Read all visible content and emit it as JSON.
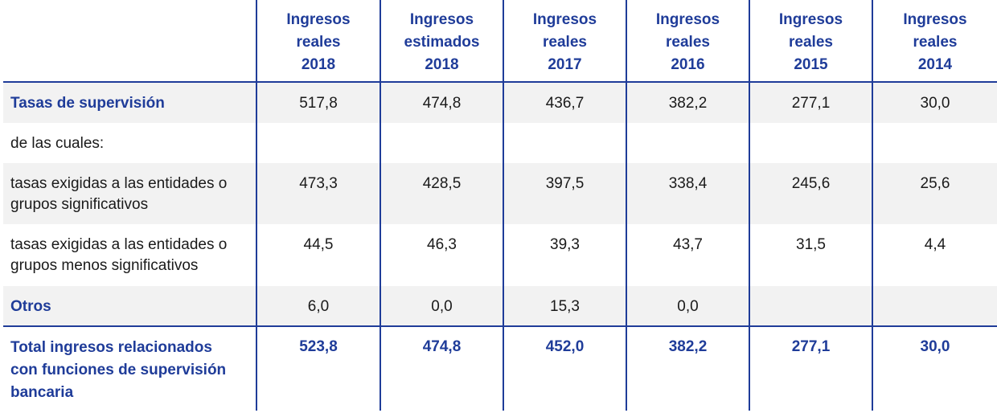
{
  "headers": [
    [
      "Ingresos",
      "reales",
      "2018"
    ],
    [
      "Ingresos",
      "estimados",
      "2018"
    ],
    [
      "Ingresos",
      "reales",
      "2017"
    ],
    [
      "Ingresos",
      "reales",
      "2016"
    ],
    [
      "Ingresos",
      "reales",
      "2015"
    ],
    [
      "Ingresos",
      "reales",
      "2014"
    ]
  ],
  "rows": {
    "tasas": {
      "label": "Tasas de supervisión",
      "values": [
        "517,8",
        "474,8",
        "436,7",
        "382,2",
        "277,1",
        "30,0"
      ]
    },
    "de_las_cuales": {
      "label": "de las cuales:"
    },
    "significativos": {
      "label_line1": "tasas exigidas a las entidades o",
      "label_line2": "grupos significativos",
      "values": [
        "473,3",
        "428,5",
        "397,5",
        "338,4",
        "245,6",
        "25,6"
      ]
    },
    "menos_significativos": {
      "label_line1": "tasas exigidas a las entidades o",
      "label_line2": "grupos menos significativos",
      "values": [
        "44,5",
        "46,3",
        "39,3",
        "43,7",
        "31,5",
        "4,4"
      ]
    },
    "otros": {
      "label": "Otros",
      "values": [
        "6,0",
        "0,0",
        "15,3",
        "0,0",
        "",
        ""
      ]
    },
    "total": {
      "label_line1": "Total ingresos relacionados",
      "label_line2": "con funciones de supervisión",
      "label_line3": "bancaria",
      "values": [
        "523,8",
        "474,8",
        "452,0",
        "382,2",
        "277,1",
        "30,0"
      ]
    }
  },
  "colors": {
    "accent": "#1f3c99",
    "row_shade": "#f2f2f2"
  }
}
